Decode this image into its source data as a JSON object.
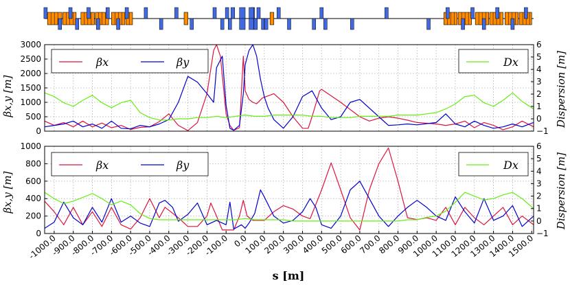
{
  "chart_data": [
    {
      "type": "line",
      "panel": "top",
      "xlim": [
        -1050,
        1510
      ],
      "ylim": [
        0,
        3000
      ],
      "y2lim": [
        -1,
        6
      ],
      "yticks": [
        "0",
        "500",
        "1000",
        "1500",
        "2000",
        "2500",
        "3000"
      ],
      "y2ticks": [
        "−1",
        "0",
        "1",
        "2",
        "3",
        "4",
        "5",
        "6"
      ],
      "ylabel": "βx,y [m]",
      "y2label": "Dispersion [m]",
      "grid": true,
      "legend": [
        "βx",
        "βy",
        "Dx"
      ],
      "series": [
        {
          "name": "βx",
          "color": "#dc143c",
          "x": [
            -1050,
            -1000,
            -950,
            -900,
            -850,
            -800,
            -750,
            -700,
            -650,
            -600,
            -550,
            -500,
            -450,
            -400,
            -350,
            -300,
            -250,
            -200,
            -165,
            -150,
            -130,
            -100,
            -80,
            -60,
            -30,
            -10,
            0,
            20,
            40,
            60,
            75,
            90,
            150,
            200,
            250,
            300,
            330,
            350,
            390,
            400,
            500,
            600,
            650,
            700,
            750,
            800,
            850,
            900,
            1000,
            1050,
            1100,
            1150,
            1200,
            1250,
            1300,
            1350,
            1400,
            1450,
            1510
          ],
          "values": [
            350,
            200,
            300,
            150,
            350,
            150,
            280,
            120,
            200,
            60,
            130,
            150,
            330,
            600,
            200,
            20,
            300,
            1300,
            2800,
            3000,
            2600,
            600,
            200,
            30,
            120,
            2600,
            1400,
            1100,
            1000,
            950,
            1050,
            1150,
            1300,
            1000,
            500,
            100,
            100,
            500,
            1400,
            1450,
            1000,
            500,
            350,
            450,
            500,
            450,
            380,
            300,
            250,
            200,
            250,
            350,
            120,
            300,
            200,
            50,
            150,
            350,
            150
          ]
        },
        {
          "name": "βy",
          "color": "#0000cd",
          "x": [
            -1050,
            -1000,
            -950,
            -900,
            -850,
            -800,
            -750,
            -700,
            -650,
            -600,
            -550,
            -500,
            -450,
            -400,
            -350,
            -300,
            -250,
            -200,
            -165,
            -150,
            -120,
            -100,
            -80,
            -60,
            -30,
            -10,
            0,
            20,
            40,
            60,
            80,
            100,
            120,
            150,
            200,
            250,
            300,
            350,
            400,
            450,
            500,
            550,
            600,
            700,
            750,
            800,
            850,
            900,
            1000,
            1050,
            1100,
            1150,
            1200,
            1250,
            1300,
            1350,
            1400,
            1450,
            1510
          ],
          "values": [
            150,
            200,
            250,
            350,
            150,
            250,
            100,
            350,
            100,
            80,
            200,
            150,
            250,
            400,
            1000,
            1900,
            1700,
            1300,
            1000,
            2200,
            2600,
            900,
            100,
            30,
            200,
            1300,
            2300,
            2800,
            3000,
            2600,
            1800,
            1200,
            800,
            400,
            100,
            500,
            1200,
            1400,
            800,
            400,
            500,
            1000,
            1100,
            500,
            200,
            220,
            250,
            220,
            300,
            600,
            250,
            150,
            350,
            200,
            100,
            150,
            250,
            150,
            300
          ]
        },
        {
          "name": "Dx",
          "color": "#66ee11",
          "axis": "right",
          "x": [
            -1050,
            -1000,
            -950,
            -900,
            -850,
            -800,
            -750,
            -700,
            -650,
            -600,
            -550,
            -500,
            -450,
            -400,
            -350,
            -300,
            -250,
            -200,
            -150,
            -100,
            -50,
            0,
            50,
            100,
            150,
            200,
            250,
            300,
            350,
            400,
            450,
            500,
            550,
            600,
            650,
            700,
            750,
            800,
            850,
            900,
            950,
            1000,
            1050,
            1100,
            1150,
            1200,
            1250,
            1300,
            1350,
            1400,
            1450,
            1510
          ],
          "values": [
            2.1,
            1.8,
            1.3,
            1.0,
            1.5,
            1.9,
            1.3,
            0.9,
            1.3,
            1.5,
            0.5,
            0.1,
            -0.1,
            -0.1,
            0.0,
            0.0,
            0.1,
            0.1,
            0.2,
            0.1,
            0.2,
            0.3,
            0.2,
            0.2,
            0.3,
            0.3,
            0.3,
            0.3,
            0.2,
            0.2,
            0.1,
            0.1,
            0.1,
            0.2,
            0.2,
            0.2,
            0.2,
            0.3,
            0.3,
            0.3,
            0.4,
            0.5,
            0.8,
            1.2,
            1.8,
            1.9,
            1.3,
            1.0,
            1.5,
            2.1,
            1.4,
            0.8
          ]
        }
      ]
    },
    {
      "type": "line",
      "panel": "bottom",
      "xlim": [
        -1050,
        1510
      ],
      "ylim": [
        0,
        1000
      ],
      "y2lim": [
        -1,
        6
      ],
      "yticks": [
        "0",
        "200",
        "400",
        "600",
        "800",
        "1000"
      ],
      "y2ticks": [
        "−1",
        "0",
        "1",
        "2",
        "3",
        "4",
        "5",
        "6"
      ],
      "ylabel": "βx,y [m]",
      "y2label": "Dispersion [m]",
      "xlabel": "s [m]",
      "xticks": [
        "-1000.0",
        "-900.0",
        "-800.0",
        "-700.0",
        "-600.0",
        "-500.0",
        "-400.0",
        "-300.0",
        "-200.0",
        "-100.0",
        "0.0",
        "100.0",
        "200.0",
        "300.0",
        "400.0",
        "500.0",
        "600.0",
        "700.0",
        "800.0",
        "900.0",
        "1000.0",
        "1100.0",
        "1200.0",
        "1300.0",
        "1400.0",
        "1500.0"
      ],
      "grid": true,
      "legend": [
        "βx",
        "βy",
        "Dx"
      ],
      "series": [
        {
          "name": "βx",
          "color": "#dc143c",
          "x": [
            -1050,
            -1000,
            -950,
            -900,
            -850,
            -800,
            -750,
            -700,
            -650,
            -600,
            -550,
            -500,
            -450,
            -420,
            -390,
            -350,
            -300,
            -250,
            -200,
            -180,
            -150,
            -120,
            -90,
            -60,
            -30,
            -10,
            10,
            40,
            100,
            150,
            200,
            250,
            300,
            340,
            400,
            450,
            500,
            550,
            600,
            650,
            700,
            750,
            800,
            850,
            900,
            950,
            1000,
            1050,
            1100,
            1150,
            1200,
            1250,
            1300,
            1350,
            1400,
            1450,
            1510
          ],
          "values": [
            370,
            250,
            100,
            300,
            100,
            250,
            80,
            300,
            100,
            50,
            180,
            400,
            180,
            300,
            250,
            180,
            80,
            80,
            200,
            350,
            200,
            40,
            40,
            40,
            200,
            380,
            200,
            150,
            150,
            250,
            320,
            280,
            200,
            170,
            500,
            810,
            500,
            180,
            40,
            500,
            800,
            980,
            600,
            180,
            160,
            180,
            150,
            300,
            100,
            300,
            180,
            100,
            200,
            300,
            100,
            200,
            100
          ]
        },
        {
          "name": "βy",
          "color": "#0000cd",
          "x": [
            -1050,
            -1000,
            -950,
            -900,
            -850,
            -800,
            -750,
            -700,
            -650,
            -600,
            -550,
            -500,
            -450,
            -420,
            -380,
            -350,
            -300,
            -250,
            -200,
            -150,
            -100,
            -80,
            -60,
            -20,
            0,
            20,
            50,
            80,
            100,
            150,
            200,
            250,
            300,
            340,
            370,
            400,
            450,
            500,
            550,
            600,
            650,
            700,
            750,
            800,
            850,
            900,
            950,
            1000,
            1050,
            1100,
            1150,
            1200,
            1250,
            1300,
            1350,
            1400,
            1450,
            1510
          ],
          "values": [
            60,
            130,
            360,
            180,
            100,
            300,
            130,
            400,
            130,
            200,
            120,
            80,
            350,
            380,
            300,
            140,
            220,
            350,
            100,
            150,
            100,
            360,
            50,
            100,
            60,
            120,
            230,
            500,
            420,
            200,
            120,
            150,
            250,
            400,
            300,
            100,
            60,
            200,
            500,
            600,
            400,
            200,
            80,
            200,
            300,
            380,
            300,
            200,
            150,
            420,
            250,
            120,
            400,
            150,
            200,
            320,
            80,
            200
          ]
        },
        {
          "name": "Dx",
          "color": "#66ee11",
          "axis": "right",
          "x": [
            -1050,
            -1000,
            -950,
            -900,
            -850,
            -800,
            -750,
            -700,
            -650,
            -600,
            -550,
            -500,
            -450,
            -400,
            -350,
            -300,
            -250,
            -200,
            -150,
            -100,
            -50,
            0,
            50,
            100,
            150,
            200,
            250,
            300,
            350,
            400,
            450,
            500,
            550,
            600,
            650,
            700,
            750,
            800,
            850,
            900,
            950,
            1000,
            1050,
            1100,
            1150,
            1200,
            1250,
            1300,
            1350,
            1400,
            1450,
            1510
          ],
          "values": [
            2.3,
            1.8,
            1.4,
            1.6,
            1.9,
            2.2,
            1.8,
            1.3,
            1.6,
            1.3,
            0.6,
            0.2,
            0.1,
            0.1,
            0.1,
            0.1,
            0.1,
            0.1,
            0.1,
            0.1,
            0.1,
            0.2,
            0.1,
            0.1,
            0.1,
            0.1,
            0.0,
            0.0,
            0.0,
            0.0,
            0.0,
            0.0,
            0.0,
            0.0,
            0.0,
            0.0,
            0.0,
            0.0,
            0.1,
            0.1,
            0.3,
            0.4,
            0.8,
            1.5,
            2.3,
            2.0,
            1.7,
            1.8,
            2.1,
            2.3,
            1.8,
            1.0
          ]
        }
      ]
    },
    {
      "type": "lattice",
      "panel": "lattice",
      "xlim": [
        -1050,
        1510
      ],
      "dipoles": [
        {
          "x0": -1035,
          "x1": -960
        },
        {
          "x0": -955,
          "x1": -885
        },
        {
          "x0": -860,
          "x1": -790
        },
        {
          "x0": -785,
          "x1": -715
        },
        {
          "x0": -700,
          "x1": -630
        },
        {
          "x0": -625,
          "x1": -590
        },
        {
          "x0": -320,
          "x1": -300
        },
        {
          "x0": 130,
          "x1": 150
        },
        {
          "x0": 1040,
          "x1": 1110
        },
        {
          "x0": 1115,
          "x1": 1185
        },
        {
          "x0": 1205,
          "x1": 1275
        },
        {
          "x0": 1280,
          "x1": 1350
        },
        {
          "x0": 1360,
          "x1": 1430
        },
        {
          "x0": 1435,
          "x1": 1500
        }
      ],
      "quadrupoles": [
        {
          "x": -1045,
          "side": "up"
        },
        {
          "x": -970,
          "side": "down"
        },
        {
          "x": -915,
          "side": "up"
        },
        {
          "x": -880,
          "side": "down"
        },
        {
          "x": -820,
          "side": "up"
        },
        {
          "x": -770,
          "side": "down"
        },
        {
          "x": -720,
          "side": "up"
        },
        {
          "x": -665,
          "side": "down"
        },
        {
          "x": -620,
          "side": "up"
        },
        {
          "x": -520,
          "side": "up"
        },
        {
          "x": -440,
          "side": "down"
        },
        {
          "x": -360,
          "side": "up"
        },
        {
          "x": -280,
          "side": "down"
        },
        {
          "x": -160,
          "side": "up"
        },
        {
          "x": -120,
          "side": "down"
        },
        {
          "x": -95,
          "side": "up"
        },
        {
          "x": -80,
          "side": "down"
        },
        {
          "x": 40,
          "side": "up"
        },
        {
          "x": 55,
          "side": "down"
        },
        {
          "x": 70,
          "side": "up"
        },
        {
          "x": 110,
          "side": "down"
        },
        {
          "x": 175,
          "side": "up"
        },
        {
          "x": 230,
          "side": "down"
        },
        {
          "x": 360,
          "side": "down"
        },
        {
          "x": 400,
          "side": "up"
        },
        {
          "x": 420,
          "side": "down"
        },
        {
          "x": 560,
          "side": "down"
        },
        {
          "x": 740,
          "side": "up"
        },
        {
          "x": 960,
          "side": "down"
        },
        {
          "x": 1060,
          "side": "up"
        },
        {
          "x": 1140,
          "side": "down"
        },
        {
          "x": 1190,
          "side": "up"
        },
        {
          "x": 1250,
          "side": "down"
        },
        {
          "x": 1320,
          "side": "up"
        },
        {
          "x": 1400,
          "side": "down"
        },
        {
          "x": 1470,
          "side": "up"
        }
      ],
      "center_quads": [
        {
          "x0": -30,
          "x1": 0,
          "side": "both"
        },
        {
          "x0": 20,
          "x1": 45,
          "side": "both"
        },
        {
          "x0": -75,
          "x1": -55,
          "side": "up"
        },
        {
          "x0": 85,
          "x1": 100,
          "side": "down"
        }
      ]
    }
  ]
}
